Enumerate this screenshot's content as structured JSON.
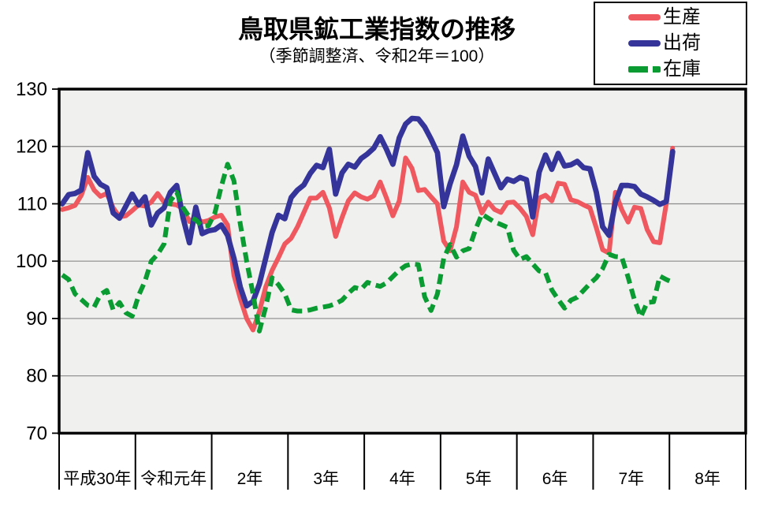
{
  "title": "鳥取県鉱工業指数の推移",
  "subtitle": "（季節調整済、令和2年＝100）",
  "legend": {
    "position": "top-right",
    "items": [
      {
        "label": "生産",
        "color": "#f0585f",
        "dash": "solid"
      },
      {
        "label": "出荷",
        "color": "#34349a",
        "dash": "solid"
      },
      {
        "label": "在庫",
        "color": "#0a9b32",
        "dash": "dashed"
      }
    ]
  },
  "chart_data": {
    "type": "line",
    "title": "鳥取県鉱工業指数の推移",
    "subtitle": "（季節調整済、令和2年＝100）",
    "x_categories": [
      "平成30年",
      "令和元年",
      "2年",
      "3年",
      "4年",
      "5年",
      "6年",
      "7年",
      "8年"
    ],
    "points_per_category": 12,
    "x_unit": "month (Jan 2018 - Jan 2026)",
    "ylim": [
      70,
      130
    ],
    "ytick_step": 10,
    "yticks": [
      70,
      80,
      90,
      100,
      110,
      120,
      130
    ],
    "grid": true,
    "plot_bg": "#f0f0ee",
    "grid_color": "#8a8a8a",
    "axis_color": "#000000",
    "legend_position": "top-right",
    "series": [
      {
        "name": "生産",
        "color": "#f0585f",
        "dash": "solid",
        "values": [
          109,
          109.3,
          109.7,
          111.5,
          114.6,
          112.4,
          111.3,
          111.8,
          109.3,
          107.7,
          107.9,
          108.8,
          109.8,
          109.6,
          110.3,
          111.8,
          110.3,
          110,
          109.8,
          109.1,
          106.9,
          107.7,
          106.8,
          107.1,
          107.7,
          108,
          106.3,
          97.5,
          93.5,
          90,
          88,
          91.2,
          95.5,
          98.4,
          100.6,
          103,
          104,
          106,
          108.5,
          111,
          111,
          112,
          109.3,
          104.3,
          107.6,
          110.5,
          111.9,
          111.2,
          110.8,
          111.4,
          113.8,
          111,
          107.9,
          110.5,
          118,
          116.2,
          112.3,
          112.5,
          111.2,
          110,
          103.5,
          101.8,
          106,
          113.8,
          112,
          111.5,
          108.4,
          110.3,
          109,
          108.5,
          110.2,
          110.3,
          109.2,
          107.8,
          104.6,
          111,
          111.5,
          110.5,
          113.6,
          113.4,
          110.7,
          110.4,
          109.8,
          109.3,
          105.8,
          102,
          101.4,
          112,
          109,
          106.8,
          109.4,
          109.2,
          105.5,
          103.4,
          103.2,
          110,
          119.7
        ]
      },
      {
        "name": "出荷",
        "color": "#34349a",
        "dash": "solid",
        "values": [
          110,
          111.6,
          111.8,
          112.4,
          118.9,
          114.8,
          113.4,
          112.8,
          108.4,
          107.5,
          109.6,
          111.7,
          109.8,
          111.2,
          106.3,
          108.4,
          109.3,
          112,
          113.2,
          107.5,
          103.2,
          109.4,
          104.8,
          105.3,
          105.5,
          106.3,
          104.5,
          100.5,
          95.5,
          92.2,
          93,
          96,
          100.5,
          105,
          108,
          107.4,
          111.1,
          112.4,
          113.3,
          115.3,
          116.7,
          116.3,
          119.5,
          111.7,
          115.4,
          116.9,
          116.4,
          117.9,
          118.7,
          119.7,
          121.7,
          119.5,
          116.9,
          121.5,
          123.9,
          124.9,
          124.8,
          123.4,
          121.3,
          118.9,
          109.5,
          113.5,
          116.8,
          121.8,
          118.3,
          116.5,
          111.9,
          117.8,
          115.3,
          112.8,
          114.3,
          113.9,
          114.6,
          114.2,
          107.7,
          115.5,
          118.5,
          116,
          118.8,
          116.6,
          116.8,
          117.4,
          116.3,
          116.1,
          112,
          106,
          104.5,
          110.3,
          113.2,
          113.2,
          113,
          111.7,
          111.2,
          110.6,
          109.9,
          110.4,
          119.1
        ]
      },
      {
        "name": "在庫",
        "color": "#0a9b32",
        "dash": "dashed",
        "values": [
          97.6,
          96.8,
          94.3,
          93.3,
          92.3,
          92,
          94.2,
          94.9,
          91.5,
          92.8,
          91,
          90.4,
          94,
          96.5,
          100,
          101.2,
          103,
          110.5,
          112,
          109.3,
          107.7,
          107.2,
          106.1,
          106.2,
          108.4,
          113,
          116.9,
          114,
          106.5,
          100,
          94.3,
          87.8,
          92,
          97.1,
          95.9,
          94.3,
          91.5,
          91.3,
          91.3,
          91.5,
          91.8,
          92,
          92.2,
          92.6,
          93.2,
          94.4,
          95.4,
          95.1,
          96.3,
          95.9,
          95.6,
          96.2,
          97.3,
          98.4,
          99.2,
          99.5,
          99.4,
          93.8,
          91.4,
          94.3,
          100.5,
          102.9,
          100.7,
          101.8,
          102.2,
          105.5,
          108.2,
          107.5,
          106.8,
          106.4,
          105.9,
          101.9,
          100.3,
          100.8,
          99.5,
          98.3,
          98,
          95,
          93.3,
          91.8,
          93.2,
          93.7,
          94.9,
          96.1,
          97.1,
          98.7,
          101.2,
          100.8,
          100.7,
          97.2,
          93.2,
          90.3,
          92.8,
          92.9,
          97.4,
          96.8,
          96.3
        ]
      }
    ]
  }
}
